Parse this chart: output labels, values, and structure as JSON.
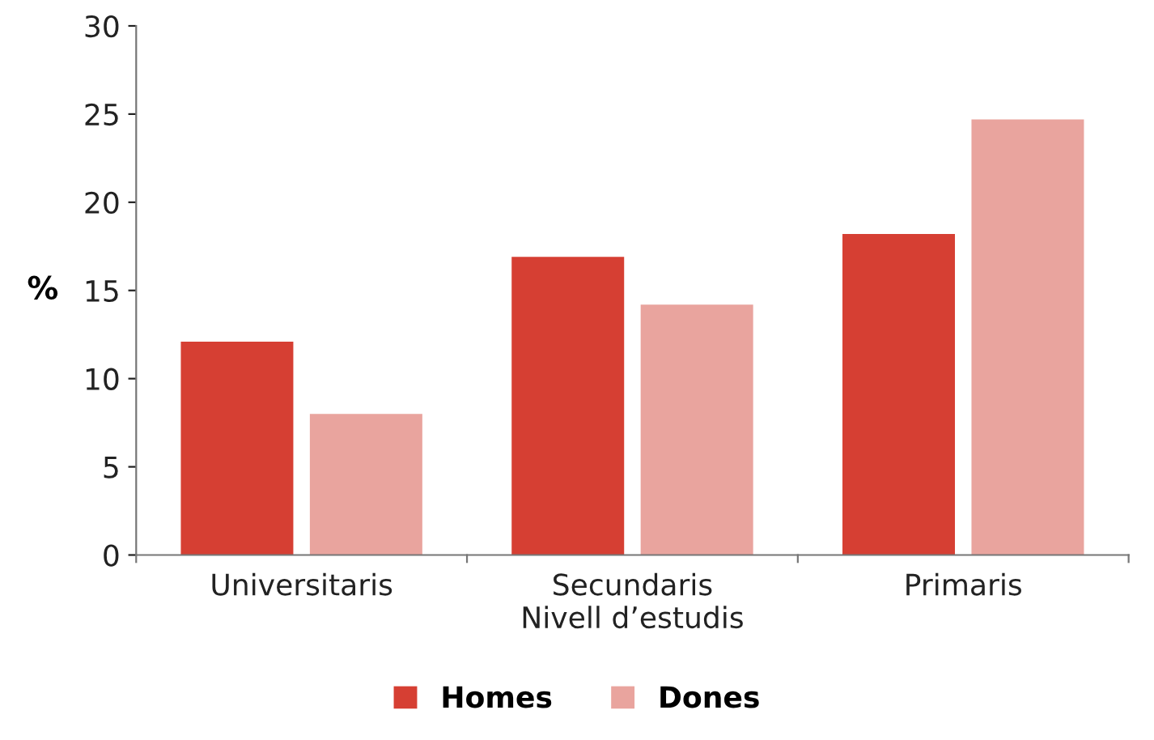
{
  "chart_data": {
    "type": "bar",
    "xlabel": "Nivell d’estudis",
    "ylabel": "%",
    "categories": [
      "Universitaris",
      "Secundaris",
      "Primaris"
    ],
    "series": [
      {
        "name": "Homes",
        "color": "#d63f33",
        "values": [
          12.1,
          16.9,
          18.2
        ]
      },
      {
        "name": "Dones",
        "color": "#e9a49e",
        "values": [
          8.0,
          14.2,
          24.7
        ]
      }
    ],
    "ylim": [
      0,
      30
    ],
    "yticks": [
      0,
      5,
      10,
      15,
      20,
      25,
      30
    ],
    "grid": false,
    "legend": "bottom"
  }
}
